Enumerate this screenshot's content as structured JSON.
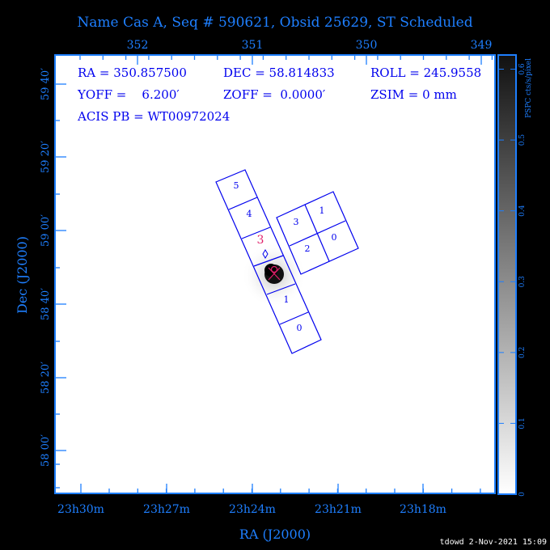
{
  "title": "Name Cas A, Seq # 590621, Obsid 25629, ST Scheduled",
  "footer": "tdowd  2-Nov-2021 15:09",
  "info": {
    "ra": "RA = 350.857500",
    "dec": "DEC = 58.814833",
    "roll": "ROLL = 245.9558",
    "yoff": "YOFF =    6.200′",
    "zoff": "ZOFF =  0.0000′",
    "zsim": "ZSIM = 0 mm",
    "acis_pb": "ACIS PB = WT00972024"
  },
  "chart_data": {
    "type": "heatmap",
    "xlabel": "RA (J2000)",
    "ylabel": "Dec (J2000)",
    "x_ticks_bottom": [
      "23h30m",
      "23h27m",
      "23h24m",
      "23h21m",
      "23h18m"
    ],
    "x_ticks_top": [
      "352",
      "351",
      "350",
      "349"
    ],
    "y_ticks": [
      "59 40′",
      "59 20′",
      "59 00′",
      "58 40′",
      "58 20′",
      "58 00′"
    ],
    "colorbar": {
      "label": "PSPC cts/s/pixel",
      "ticks": [
        "0",
        "0.1",
        "0.2",
        "0.3",
        "0.4",
        "0.5",
        "0.6"
      ],
      "range": [
        0,
        0.62
      ],
      "colormap": "white-to-black"
    },
    "detector_labels": {
      "s_array": [
        "5",
        "4",
        "3",
        "1",
        "0"
      ],
      "i_array": [
        "3",
        "1",
        "2",
        "0"
      ],
      "aimpoint_chip": "3"
    },
    "colors": {
      "axes": "#1e7fff",
      "overlay": "#0000ee",
      "aimpoint": "#e0206a"
    }
  }
}
